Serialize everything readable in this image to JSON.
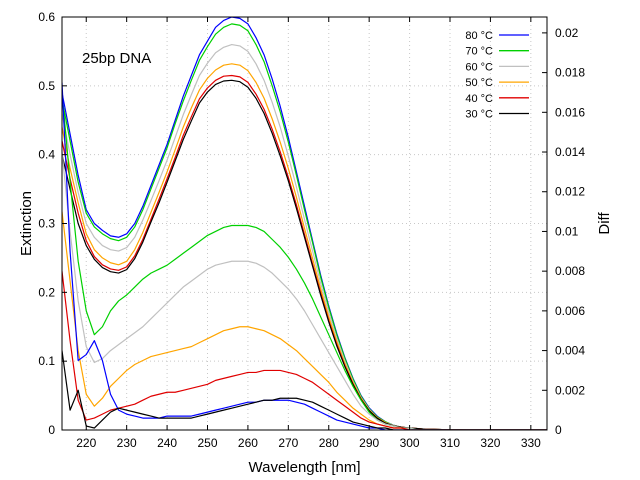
{
  "chart_data": {
    "type": "line",
    "annotation": "25bp DNA",
    "xlabel": "Wavelength [nm]",
    "ylabel": "Extinction",
    "y2label": "Diff",
    "xlim": [
      214,
      334
    ],
    "ylim": [
      0,
      0.6
    ],
    "y2lim": [
      0,
      0.0208
    ],
    "xticks": [
      "220",
      "230",
      "240",
      "250",
      "260",
      "270",
      "280",
      "290",
      "300",
      "310",
      "320",
      "330"
    ],
    "yticks": [
      "0",
      "0.1",
      "0.2",
      "0.3",
      "0.4",
      "0.5",
      "0.6"
    ],
    "y2ticks": [
      "0",
      "0.002",
      "0.004",
      "0.006",
      "0.008",
      "0.01",
      "0.012",
      "0.014",
      "0.016",
      "0.018",
      "0.02"
    ],
    "grid": true,
    "legend_position": "top-right",
    "x": [
      214,
      216,
      218,
      220,
      222,
      224,
      226,
      228,
      230,
      232,
      234,
      236,
      238,
      240,
      242,
      244,
      246,
      248,
      250,
      252,
      254,
      256,
      258,
      260,
      262,
      264,
      266,
      268,
      270,
      272,
      274,
      276,
      278,
      280,
      282,
      284,
      286,
      288,
      290,
      292,
      294,
      296,
      298,
      300,
      302,
      304,
      306,
      308,
      310,
      312,
      314,
      316,
      318,
      320,
      322,
      324,
      326,
      328,
      330,
      332,
      334
    ],
    "series": [
      {
        "name": "80 °C",
        "color": "#0000ff",
        "axis": "left",
        "values": [
          0.49,
          0.43,
          0.37,
          0.32,
          0.3,
          0.29,
          0.282,
          0.28,
          0.285,
          0.3,
          0.325,
          0.355,
          0.385,
          0.415,
          0.45,
          0.485,
          0.515,
          0.545,
          0.565,
          0.585,
          0.595,
          0.6,
          0.598,
          0.59,
          0.57,
          0.545,
          0.51,
          0.47,
          0.425,
          0.375,
          0.325,
          0.275,
          0.225,
          0.18,
          0.14,
          0.105,
          0.075,
          0.05,
          0.032,
          0.02,
          0.012,
          0.007,
          0.004,
          0.003,
          0.002,
          0.001,
          0.001,
          0.0005,
          0.0003,
          0.0002,
          0.0001,
          0,
          0,
          0,
          0,
          0,
          0,
          0,
          0,
          0,
          0
        ]
      },
      {
        "name": "70 °C",
        "color": "#00d000",
        "axis": "left",
        "values": [
          0.48,
          0.42,
          0.36,
          0.315,
          0.295,
          0.285,
          0.278,
          0.275,
          0.28,
          0.295,
          0.32,
          0.35,
          0.38,
          0.41,
          0.445,
          0.478,
          0.508,
          0.537,
          0.557,
          0.575,
          0.585,
          0.59,
          0.588,
          0.58,
          0.56,
          0.535,
          0.5,
          0.462,
          0.418,
          0.37,
          0.32,
          0.272,
          0.222,
          0.178,
          0.138,
          0.104,
          0.074,
          0.049,
          0.031,
          0.019,
          0.012,
          0.007,
          0.004,
          0.003,
          0.002,
          0.001,
          0.001,
          0.0005,
          0.0003,
          0.0002,
          0.0001,
          0,
          0,
          0,
          0,
          0,
          0,
          0,
          0,
          0,
          0
        ]
      },
      {
        "name": "60 °C",
        "color": "#c0c0c0",
        "axis": "left",
        "values": [
          0.46,
          0.4,
          0.345,
          0.3,
          0.28,
          0.268,
          0.262,
          0.26,
          0.265,
          0.28,
          0.305,
          0.333,
          0.362,
          0.392,
          0.425,
          0.458,
          0.487,
          0.515,
          0.533,
          0.548,
          0.556,
          0.56,
          0.558,
          0.55,
          0.532,
          0.508,
          0.476,
          0.44,
          0.398,
          0.353,
          0.306,
          0.26,
          0.213,
          0.171,
          0.133,
          0.1,
          0.071,
          0.047,
          0.03,
          0.018,
          0.011,
          0.007,
          0.004,
          0.003,
          0.002,
          0.001,
          0.001,
          0.0005,
          0.0003,
          0.0002,
          0.0001,
          0,
          0,
          0,
          0,
          0,
          0,
          0,
          0,
          0,
          0
        ]
      },
      {
        "name": "50 °C",
        "color": "#ffa500",
        "axis": "left",
        "values": [
          0.44,
          0.38,
          0.33,
          0.285,
          0.262,
          0.25,
          0.243,
          0.24,
          0.245,
          0.262,
          0.287,
          0.316,
          0.345,
          0.375,
          0.407,
          0.44,
          0.468,
          0.494,
          0.511,
          0.523,
          0.53,
          0.532,
          0.53,
          0.522,
          0.505,
          0.482,
          0.452,
          0.418,
          0.38,
          0.338,
          0.293,
          0.249,
          0.205,
          0.164,
          0.128,
          0.096,
          0.069,
          0.046,
          0.029,
          0.018,
          0.011,
          0.006,
          0.004,
          0.003,
          0.002,
          0.001,
          0.001,
          0.0005,
          0.0003,
          0.0002,
          0.0001,
          0,
          0,
          0,
          0,
          0,
          0,
          0,
          0,
          0,
          0
        ]
      },
      {
        "name": "40 °C",
        "color": "#e00000",
        "axis": "left",
        "values": [
          0.42,
          0.365,
          0.315,
          0.275,
          0.252,
          0.24,
          0.234,
          0.232,
          0.237,
          0.253,
          0.277,
          0.306,
          0.335,
          0.365,
          0.396,
          0.428,
          0.455,
          0.481,
          0.497,
          0.508,
          0.514,
          0.515,
          0.513,
          0.505,
          0.488,
          0.466,
          0.437,
          0.404,
          0.367,
          0.327,
          0.284,
          0.241,
          0.199,
          0.159,
          0.124,
          0.093,
          0.067,
          0.045,
          0.028,
          0.017,
          0.01,
          0.006,
          0.004,
          0.003,
          0.002,
          0.001,
          0.001,
          0.0005,
          0.0003,
          0.0002,
          0.0001,
          0,
          0,
          0,
          0,
          0,
          0,
          0,
          0,
          0,
          0
        ]
      },
      {
        "name": "30 °C",
        "color": "#000000",
        "axis": "left",
        "values": [
          0.4,
          0.35,
          0.3,
          0.268,
          0.248,
          0.236,
          0.23,
          0.228,
          0.233,
          0.249,
          0.273,
          0.302,
          0.33,
          0.36,
          0.391,
          0.422,
          0.449,
          0.475,
          0.491,
          0.502,
          0.507,
          0.508,
          0.506,
          0.498,
          0.482,
          0.46,
          0.431,
          0.398,
          0.362,
          0.322,
          0.28,
          0.238,
          0.196,
          0.157,
          0.122,
          0.092,
          0.066,
          0.044,
          0.028,
          0.017,
          0.01,
          0.006,
          0.004,
          0.003,
          0.002,
          0.001,
          0.001,
          0.0005,
          0.0003,
          0.0002,
          0.0001,
          0,
          0,
          0,
          0,
          0,
          0,
          0,
          0,
          0,
          0
        ]
      },
      {
        "name": "Diff 80 °C",
        "color": "#00d000",
        "axis": "right",
        "values": [
          0.017,
          0.0125,
          0.0085,
          0.006,
          0.0048,
          0.0052,
          0.006,
          0.0065,
          0.0068,
          0.0072,
          0.0076,
          0.0079,
          0.0081,
          0.0083,
          0.0086,
          0.0089,
          0.0092,
          0.0095,
          0.0098,
          0.01,
          0.0102,
          0.0103,
          0.0103,
          0.0103,
          0.0102,
          0.01,
          0.0096,
          0.0092,
          0.0087,
          0.0081,
          0.0074,
          0.0066,
          0.0057,
          0.0048,
          0.0039,
          0.003,
          0.0022,
          0.0015,
          0.0009,
          0.0005,
          0.0003,
          0.0002,
          0.0001,
          0.0001,
          0,
          0,
          0,
          0,
          0,
          0,
          0,
          0,
          0,
          0,
          0,
          0,
          0,
          0,
          0,
          0,
          0
        ]
      },
      {
        "name": "Diff 70 °C",
        "color": "#c0c0c0",
        "axis": "right",
        "values": [
          0.014,
          0.01,
          0.0065,
          0.0042,
          0.0034,
          0.0036,
          0.004,
          0.0043,
          0.0046,
          0.0049,
          0.0052,
          0.0056,
          0.006,
          0.0064,
          0.0068,
          0.0072,
          0.0075,
          0.0078,
          0.0081,
          0.0083,
          0.0084,
          0.0085,
          0.0085,
          0.0085,
          0.0084,
          0.0082,
          0.0079,
          0.0075,
          0.0071,
          0.0066,
          0.006,
          0.0053,
          0.0046,
          0.0039,
          0.0032,
          0.0025,
          0.0018,
          0.0012,
          0.0008,
          0.0005,
          0.0003,
          0.0002,
          0.0001,
          0.0001,
          0,
          0,
          0,
          0,
          0,
          0,
          0,
          0,
          0,
          0,
          0,
          0,
          0,
          0,
          0,
          0,
          0
        ]
      },
      {
        "name": "Diff 60 °C",
        "color": "#ffa500",
        "axis": "right",
        "values": [
          0.011,
          0.0075,
          0.004,
          0.0018,
          0.0012,
          0.0016,
          0.0022,
          0.0026,
          0.003,
          0.0033,
          0.0035,
          0.0037,
          0.0038,
          0.0039,
          0.004,
          0.0041,
          0.0042,
          0.0044,
          0.0046,
          0.0048,
          0.005,
          0.0051,
          0.0052,
          0.0052,
          0.0051,
          0.005,
          0.0048,
          0.0046,
          0.0043,
          0.004,
          0.0036,
          0.0032,
          0.0028,
          0.0024,
          0.0019,
          0.0015,
          0.0011,
          0.0008,
          0.0005,
          0.0003,
          0.0002,
          0.0001,
          0.0001,
          0,
          0,
          0,
          0,
          0,
          0,
          0,
          0,
          0,
          0,
          0,
          0,
          0,
          0,
          0,
          0,
          0,
          0
        ]
      },
      {
        "name": "Diff 50 °C",
        "color": "#e00000",
        "axis": "right",
        "values": [
          0.008,
          0.0045,
          0.0015,
          0.0005,
          0.0006,
          0.0008,
          0.001,
          0.0011,
          0.0012,
          0.0013,
          0.0015,
          0.0017,
          0.0018,
          0.0019,
          0.0019,
          0.002,
          0.0021,
          0.0022,
          0.0023,
          0.0025,
          0.0026,
          0.0027,
          0.0028,
          0.0029,
          0.0029,
          0.003,
          0.003,
          0.003,
          0.0029,
          0.0028,
          0.0026,
          0.0024,
          0.0021,
          0.0018,
          0.0015,
          0.0012,
          0.0009,
          0.0006,
          0.0004,
          0.0003,
          0.0002,
          0.0001,
          0.0001,
          0,
          0,
          0,
          0,
          0,
          0,
          0,
          0,
          0,
          0,
          0,
          0,
          0,
          0,
          0,
          0,
          0,
          0
        ]
      },
      {
        "name": "Diff 40 °C",
        "color": "#0000ff",
        "axis": "right",
        "values": [
          0.0175,
          0.009,
          0.0035,
          0.0038,
          0.0045,
          0.0035,
          0.0018,
          0.001,
          0.0008,
          0.0007,
          0.0006,
          0.0006,
          0.0006,
          0.0007,
          0.0007,
          0.0007,
          0.0007,
          0.0008,
          0.0009,
          0.001,
          0.0011,
          0.0012,
          0.0013,
          0.0014,
          0.0014,
          0.0015,
          0.0015,
          0.0015,
          0.0015,
          0.0014,
          0.0013,
          0.0011,
          0.0009,
          0.0007,
          0.0005,
          0.0004,
          0.0003,
          0.0002,
          0.0001,
          0.0001,
          0,
          0,
          0,
          0,
          0,
          0,
          0,
          0,
          0,
          0,
          0,
          0,
          0,
          0,
          0,
          0,
          0,
          0,
          0,
          0,
          0
        ]
      },
      {
        "name": "Diff 30 °C",
        "color": "#000000",
        "axis": "right",
        "values": [
          0.004,
          0.001,
          0.002,
          0.0002,
          0.0001,
          0.0005,
          0.0009,
          0.0011,
          0.001,
          0.0009,
          0.0008,
          0.0007,
          0.0006,
          0.0006,
          0.0006,
          0.0006,
          0.0006,
          0.0007,
          0.0008,
          0.0009,
          0.001,
          0.0011,
          0.0012,
          0.0013,
          0.0014,
          0.0015,
          0.0015,
          0.0016,
          0.0016,
          0.0016,
          0.0015,
          0.0014,
          0.0012,
          0.001,
          0.0008,
          0.0006,
          0.0004,
          0.0003,
          0.0002,
          0.0001,
          0.0001,
          0,
          0,
          0,
          0,
          0,
          0,
          0,
          0,
          0,
          0,
          0,
          0,
          0,
          0,
          0,
          0,
          0,
          0,
          0,
          0
        ]
      }
    ],
    "legend": [
      {
        "label": "80 °C",
        "color": "#0000ff"
      },
      {
        "label": "70 °C",
        "color": "#00d000"
      },
      {
        "label": "60 °C",
        "color": "#c0c0c0"
      },
      {
        "label": "50 °C",
        "color": "#ffa500"
      },
      {
        "label": "40 °C",
        "color": "#e00000"
      },
      {
        "label": "30 °C",
        "color": "#000000"
      }
    ]
  }
}
